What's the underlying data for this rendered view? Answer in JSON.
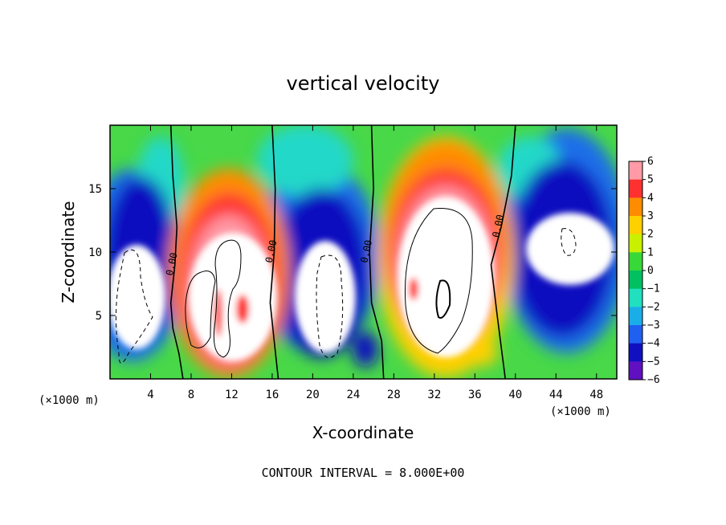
{
  "chart_data": {
    "type": "heatmap",
    "title": "vertical velocity",
    "xlabel": "X-coordinate",
    "ylabel": "Z-coordinate",
    "x_unit": "(×1000 m)",
    "x_ticks": [
      4,
      8,
      12,
      16,
      20,
      24,
      28,
      32,
      36,
      40,
      44,
      48
    ],
    "y_ticks": [
      5,
      10,
      15
    ],
    "xlim": [
      0,
      50
    ],
    "ylim": [
      0,
      20
    ],
    "colorbar": {
      "ticks": [
        6,
        5,
        4,
        3,
        2,
        1,
        0,
        -1,
        -2,
        -3,
        -4,
        -5,
        -6
      ],
      "tick_labels": [
        "6",
        "5",
        "4",
        "3",
        "2",
        "1",
        "0",
        "−1",
        "−2",
        "−3",
        "−4",
        "−5",
        "−6"
      ],
      "range": [
        -6,
        6
      ],
      "colors": [
        "#ff9aa6",
        "#ff3030",
        "#ff8c00",
        "#ffd000",
        "#c8f000",
        "#38d838",
        "#00c060",
        "#20e0c0",
        "#1aaee8",
        "#2060f0",
        "#1010c0",
        "#6010c0"
      ]
    },
    "zero_contour_label": "0.00",
    "zero_contours": [
      {
        "x": [
          6.0,
          6.2,
          6.6,
          6.4,
          6.0,
          6.2,
          6.8,
          7.2
        ],
        "z": [
          20,
          16,
          12,
          9,
          6,
          4,
          2,
          0
        ]
      },
      {
        "x": [
          16.0,
          16.3,
          16.2,
          15.8,
          16.2,
          16.6
        ],
        "z": [
          20,
          15,
          10,
          6,
          3,
          0
        ]
      },
      {
        "x": [
          25.8,
          26.0,
          25.6,
          25.8,
          26.8,
          27.0
        ],
        "z": [
          20,
          15,
          10,
          6,
          3,
          0
        ]
      },
      {
        "x": [
          40.0,
          39.6,
          38.6,
          37.6,
          38.2,
          39.0
        ],
        "z": [
          20,
          16,
          12,
          9,
          5,
          0
        ]
      }
    ],
    "cells": [
      {
        "x": 12,
        "z": 12,
        "w": 7.5,
        "h": 15,
        "v": 6
      },
      {
        "x": 32,
        "z": 12,
        "w": 9,
        "h": 16,
        "v": 6
      },
      {
        "x": 45,
        "z": 11,
        "w": 8,
        "h": 9,
        "v": -6
      },
      {
        "x": 21,
        "z": 7,
        "w": 5,
        "h": 9,
        "v": -6
      },
      {
        "x": 2.5,
        "z": 6,
        "w": 5,
        "h": 10,
        "v": -6
      }
    ],
    "footer": "CONTOUR INTERVAL = 8.000E+00"
  }
}
